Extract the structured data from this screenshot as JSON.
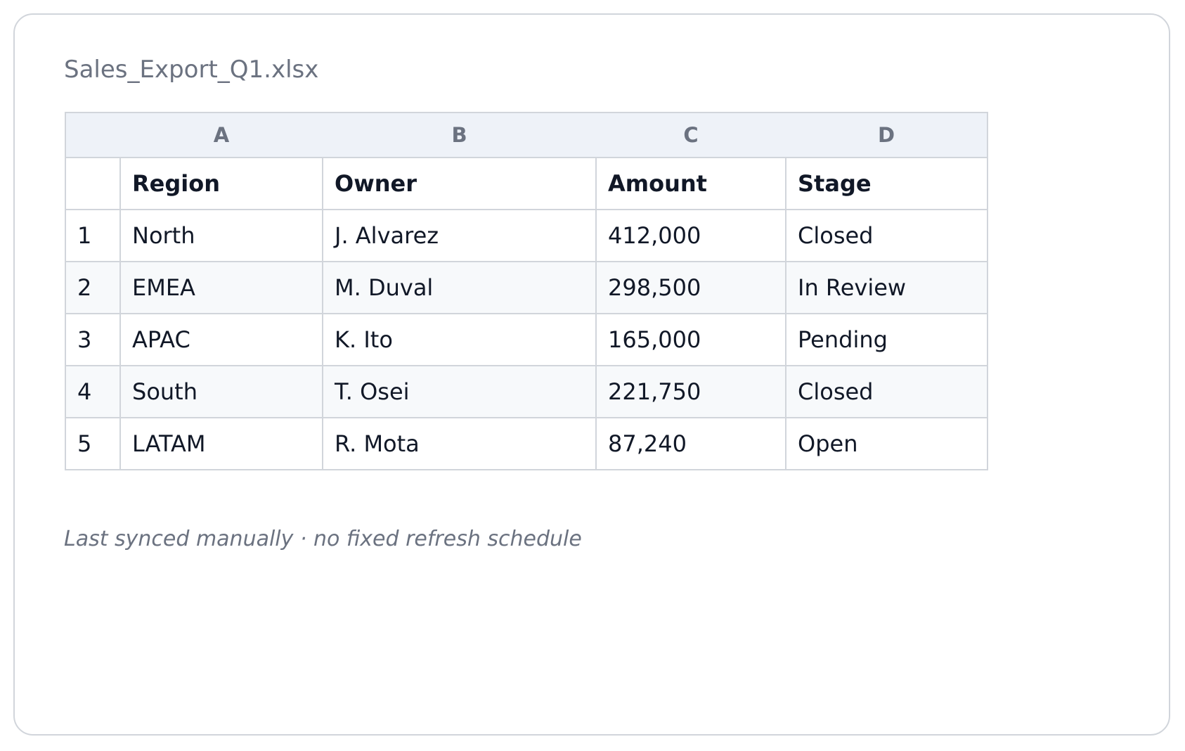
{
  "header": {
    "title": "Sales_Export_Q1.xlsx"
  },
  "table": {
    "column_letters": [
      "A",
      "B",
      "C",
      "D"
    ],
    "header": [
      "Region",
      "Owner",
      "Amount",
      "Stage"
    ],
    "rows": [
      [
        "1",
        "North",
        "J. Alvarez",
        "412,000",
        "Closed"
      ],
      [
        "2",
        "EMEA",
        "M. Duval",
        "298,500",
        "In Review"
      ],
      [
        "3",
        "APAC",
        "K. Ito",
        "165,000",
        "Pending"
      ],
      [
        "4",
        "South",
        "T. Osei",
        "221,750",
        "Closed"
      ],
      [
        "5",
        "LATAM",
        "R. Mota",
        "87,240",
        "Open"
      ]
    ]
  },
  "footer": {
    "note": "Last synced manually · no fixed refresh schedule"
  }
}
